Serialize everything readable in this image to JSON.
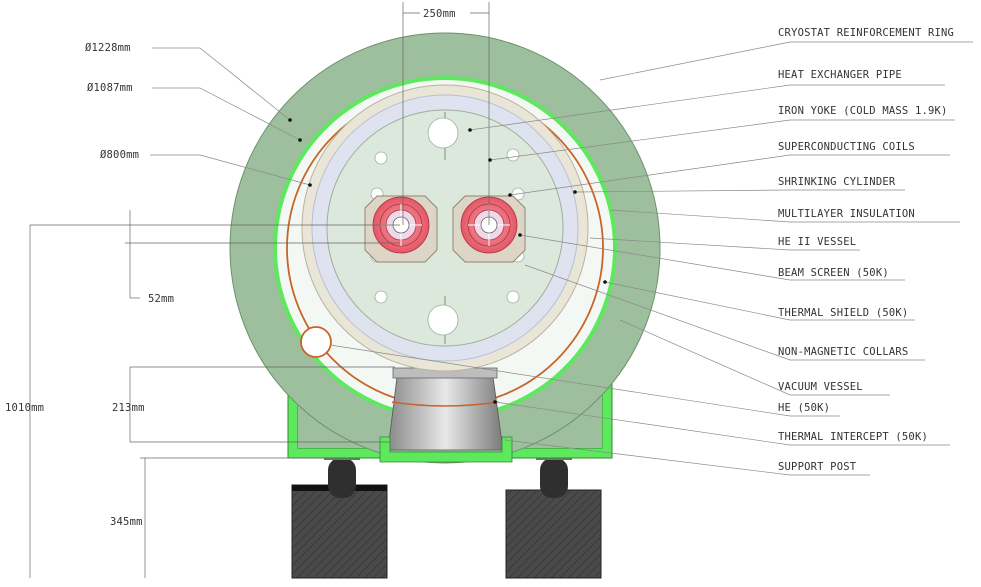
{
  "labels": {
    "cryostat_ring": "CRYOSTAT REINFORCEMENT RING",
    "heat_exchanger": "HEAT EXCHANGER PIPE",
    "iron_yoke": "IRON YOKE (COLD MASS 1.9K)",
    "sc_coils": "SUPERCONDUCTING COILS",
    "shrinking_cylinder": "SHRINKING CYLINDER",
    "multilayer_insulation": "MULTILAYER INSULATION",
    "he_vessel": "HE II VESSEL",
    "beam_screen": "BEAM SCREEN (50K)",
    "thermal_shield": "THERMAL SHIELD (50K)",
    "collars": "NON-MAGNETIC COLLARS",
    "vacuum_vessel": "VACUUM VESSEL",
    "he_50k": "HE (50K)",
    "thermal_intercept": "THERMAL INTERCEPT (50K)",
    "support_post": "SUPPORT POST"
  },
  "dimensions": {
    "d1228": "Ø1228mm",
    "d1087": "Ø1087mm",
    "d800": "Ø800mm",
    "w250": "250mm",
    "h52": "52mm",
    "h213": "213mm",
    "h1010": "1010mm",
    "h345": "345mm"
  },
  "colors": {
    "ring_outer": "#9ebf9e",
    "ring_light": "#5ee85e",
    "insulation": "#f4f8f4",
    "heat_pipe": "#c86428",
    "yoke": "#dde8dd",
    "collar": "#ddd6c6",
    "coil": "#e86070",
    "post": "#4a4a4a"
  }
}
